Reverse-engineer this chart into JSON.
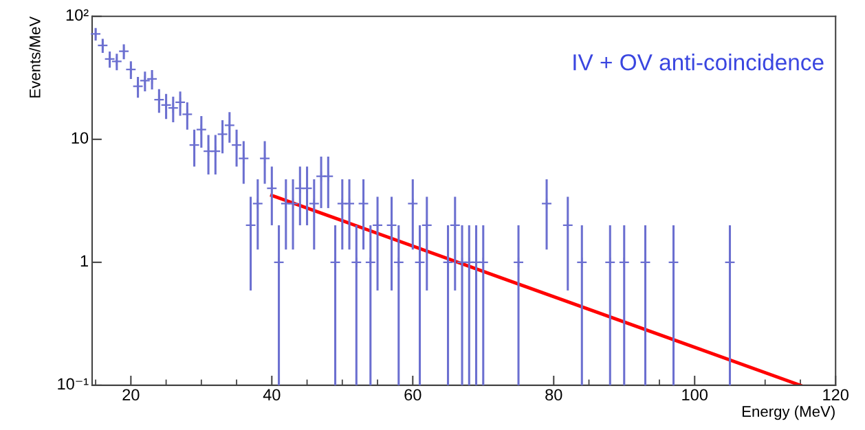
{
  "chart_data": {
    "type": "scatter",
    "xlabel": "Energy (MeV)",
    "ylabel": "Events/MeV",
    "log": "y",
    "grid": false,
    "marker": "cross",
    "xlim": [
      14.5,
      120
    ],
    "xticks": [
      20,
      40,
      60,
      80,
      100,
      120
    ],
    "ylim": [
      0.1,
      100
    ],
    "yticks": [
      {
        "value": 0.1,
        "label": "10⁻¹"
      },
      1,
      10,
      {
        "value": 100,
        "label": "10²"
      }
    ],
    "annotations": [
      "IV + OV anti-coincidence"
    ],
    "series": [
      {
        "color": "#6b6fd0",
        "x": [
          15,
          16,
          17,
          18,
          19,
          20,
          21,
          22,
          23,
          24,
          25,
          26,
          27,
          28,
          29,
          30,
          31,
          32,
          33,
          34,
          35,
          36,
          37,
          38,
          39,
          40,
          41,
          42,
          43,
          44,
          45,
          46,
          47,
          48,
          49,
          50,
          51,
          52,
          53,
          54,
          55,
          57,
          58,
          60,
          61,
          62,
          65,
          66,
          67,
          68,
          69,
          70,
          75,
          79,
          82,
          84,
          88,
          90,
          93,
          97,
          105
        ],
        "values": [
          72,
          58,
          45,
          43,
          52,
          37,
          27,
          30,
          31,
          21,
          19,
          18,
          20,
          16,
          9,
          12,
          8,
          8,
          11,
          13,
          9,
          7,
          2,
          3,
          7,
          4,
          1,
          3,
          3,
          4,
          4,
          3,
          5,
          5,
          1,
          3,
          3,
          1,
          3,
          1,
          2,
          2,
          1,
          3,
          1,
          2,
          1,
          2,
          1,
          1,
          1,
          1,
          1,
          3,
          2,
          1,
          1,
          1,
          1,
          1,
          1
        ],
        "errors": [
          8.49,
          7.62,
          6.71,
          6.56,
          7.21,
          6.08,
          5.2,
          5.48,
          5.57,
          4.58,
          4.36,
          4.24,
          4.47,
          4,
          3,
          3.46,
          2.83,
          2.83,
          3.32,
          3.61,
          3,
          2.65,
          1.41,
          1.73,
          2.65,
          2,
          [
            0.1,
            2
          ],
          1.73,
          1.73,
          2,
          2,
          1.73,
          2.24,
          2.24,
          [
            0.1,
            2
          ],
          1.73,
          1.73,
          [
            0.1,
            2
          ],
          1.73,
          [
            0.1,
            2
          ],
          1.41,
          1.41,
          [
            0.1,
            2
          ],
          1.73,
          [
            0.1,
            2
          ],
          1.41,
          [
            0.1,
            2
          ],
          1.41,
          [
            0.1,
            2
          ],
          [
            0.1,
            2
          ],
          [
            0.1,
            2
          ],
          [
            0.1,
            2
          ],
          [
            0.1,
            2
          ],
          1.73,
          1.41,
          [
            0.1,
            2
          ],
          [
            0.1,
            2
          ],
          [
            0.1,
            2
          ],
          [
            0.1,
            2
          ],
          [
            0.1,
            2
          ],
          [
            0.1,
            2
          ]
        ]
      },
      {
        "type": "line",
        "marker": "none",
        "color": "#ff0000",
        "x": [
          40,
          115
        ],
        "values": [
          3.5,
          0.1
        ]
      }
    ]
  }
}
